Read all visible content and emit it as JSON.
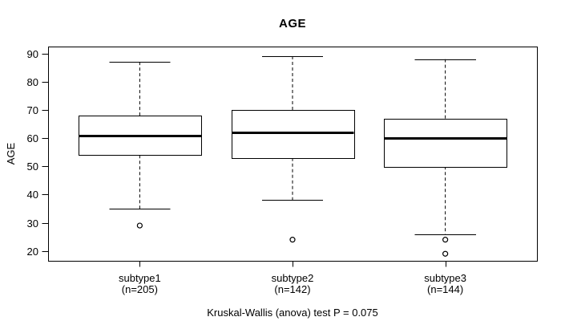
{
  "chart_data": {
    "type": "boxplot",
    "title": "AGE",
    "ylabel": "AGE",
    "xlabel": "",
    "footer": "Kruskal-Wallis (anova) test P = 0.075",
    "ylim": [
      16.5,
      92.5
    ],
    "yticks": [
      20,
      30,
      40,
      50,
      60,
      70,
      80,
      90
    ],
    "grid": false,
    "legend": "none",
    "colors": {
      "stroke": "#000000",
      "median": "#000000",
      "box_fill": "#ffffff",
      "background": "#ffffff",
      "text": "#000000"
    },
    "groups": [
      {
        "label": "subtype1",
        "sublabel": "(n=205)",
        "n": 205,
        "whisker_low": 35,
        "q1": 54,
        "median": 61,
        "q3": 68,
        "whisker_high": 87,
        "outliers": [
          29
        ]
      },
      {
        "label": "subtype2",
        "sublabel": "(n=142)",
        "n": 142,
        "whisker_low": 38,
        "q1": 53,
        "median": 62,
        "q3": 70,
        "whisker_high": 89,
        "outliers": [
          24
        ]
      },
      {
        "label": "subtype3",
        "sublabel": "(n=144)",
        "n": 144,
        "whisker_low": 26,
        "q1": 50,
        "median": 60,
        "q3": 67,
        "whisker_high": 88,
        "outliers": [
          24,
          19
        ]
      }
    ]
  }
}
